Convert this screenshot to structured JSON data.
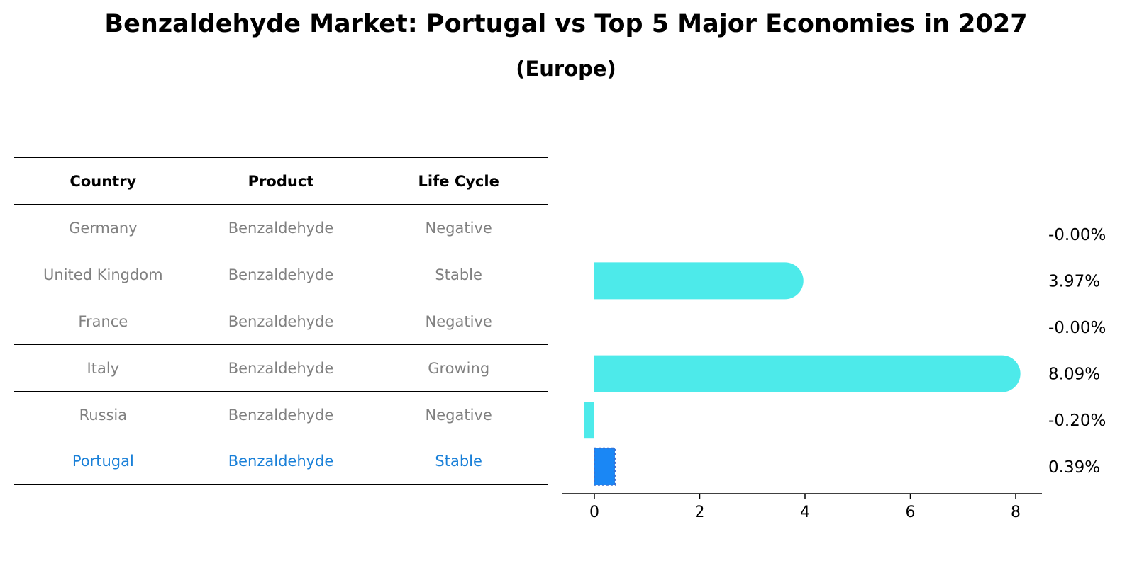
{
  "title": "Benzaldehyde Market: Portugal vs Top 5 Major Economies in 2027",
  "subtitle": "(Europe)",
  "table": {
    "headers": [
      "Country",
      "Product",
      "Life Cycle"
    ],
    "rows": [
      [
        "Germany",
        "Benzaldehyde",
        "Negative"
      ],
      [
        "United Kingdom",
        "Benzaldehyde",
        "Stable"
      ],
      [
        "France",
        "Benzaldehyde",
        "Negative"
      ],
      [
        "Italy",
        "Benzaldehyde",
        "Growing"
      ],
      [
        "Russia",
        "Benzaldehyde",
        "Negative"
      ],
      [
        "Portugal",
        "Benzaldehyde",
        "Stable"
      ]
    ]
  },
  "chart_data": {
    "type": "bar",
    "orientation": "horizontal",
    "categories": [
      "Germany",
      "United Kingdom",
      "France",
      "Italy",
      "Russia",
      "Portugal"
    ],
    "values": [
      -0.0,
      3.97,
      -0.0,
      8.09,
      -0.2,
      0.39
    ],
    "value_labels": [
      "-0.00%",
      "3.97%",
      "-0.00%",
      "8.09%",
      "-0.20%",
      "0.39%"
    ],
    "xticks": [
      0,
      2,
      4,
      6,
      8
    ],
    "xlim": [
      -0.6,
      8.5
    ],
    "colors": {
      "default": "#4deaea",
      "highlight": "#1a87f5"
    },
    "highlight": "Portugal"
  }
}
